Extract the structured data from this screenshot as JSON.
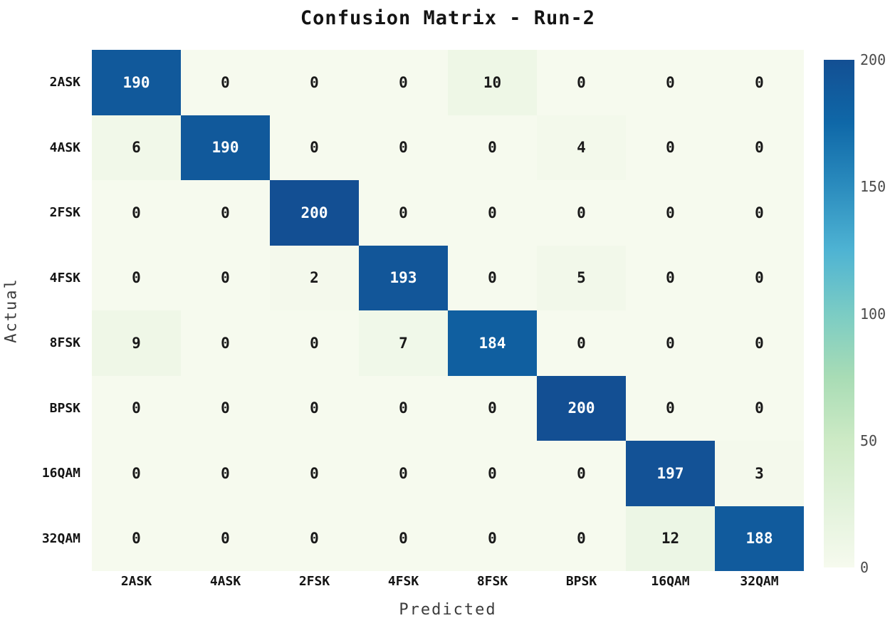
{
  "title": "Confusion Matrix - Run-2",
  "chart_data": {
    "type": "heatmap",
    "title": "Confusion Matrix - Run-2",
    "xlabel": "Predicted",
    "ylabel": "Actual",
    "x_categories": [
      "2ASK",
      "4ASK",
      "2FSK",
      "4FSK",
      "8FSK",
      "BPSK",
      "16QAM",
      "32QAM"
    ],
    "y_categories": [
      "2ASK",
      "4ASK",
      "2FSK",
      "4FSK",
      "8FSK",
      "BPSK",
      "16QAM",
      "32QAM"
    ],
    "matrix": [
      [
        190,
        0,
        0,
        0,
        10,
        0,
        0,
        0
      ],
      [
        6,
        190,
        0,
        0,
        0,
        4,
        0,
        0
      ],
      [
        0,
        0,
        200,
        0,
        0,
        0,
        0,
        0
      ],
      [
        0,
        0,
        2,
        193,
        0,
        5,
        0,
        0
      ],
      [
        9,
        0,
        0,
        7,
        184,
        0,
        0,
        0
      ],
      [
        0,
        0,
        0,
        0,
        0,
        200,
        0,
        0
      ],
      [
        0,
        0,
        0,
        0,
        0,
        0,
        197,
        3
      ],
      [
        0,
        0,
        0,
        0,
        0,
        0,
        12,
        188
      ]
    ],
    "vmin": 0,
    "vmax": 200,
    "colorbar_ticks": [
      0,
      50,
      100,
      150,
      200
    ],
    "legend_position": "right-colorbar",
    "grid": false,
    "colormap": {
      "name": "GnBu",
      "stops": [
        "#f6faee",
        "#e2f2db",
        "#cdeac5",
        "#a8dcb5",
        "#7bccc4",
        "#4eb3d3",
        "#2b8cbe",
        "#0f68a8",
        "#134f93"
      ]
    },
    "cell_text_color_low": "#1a1a1a",
    "cell_text_color_high": "#ffffff",
    "text_color_threshold": 100
  }
}
